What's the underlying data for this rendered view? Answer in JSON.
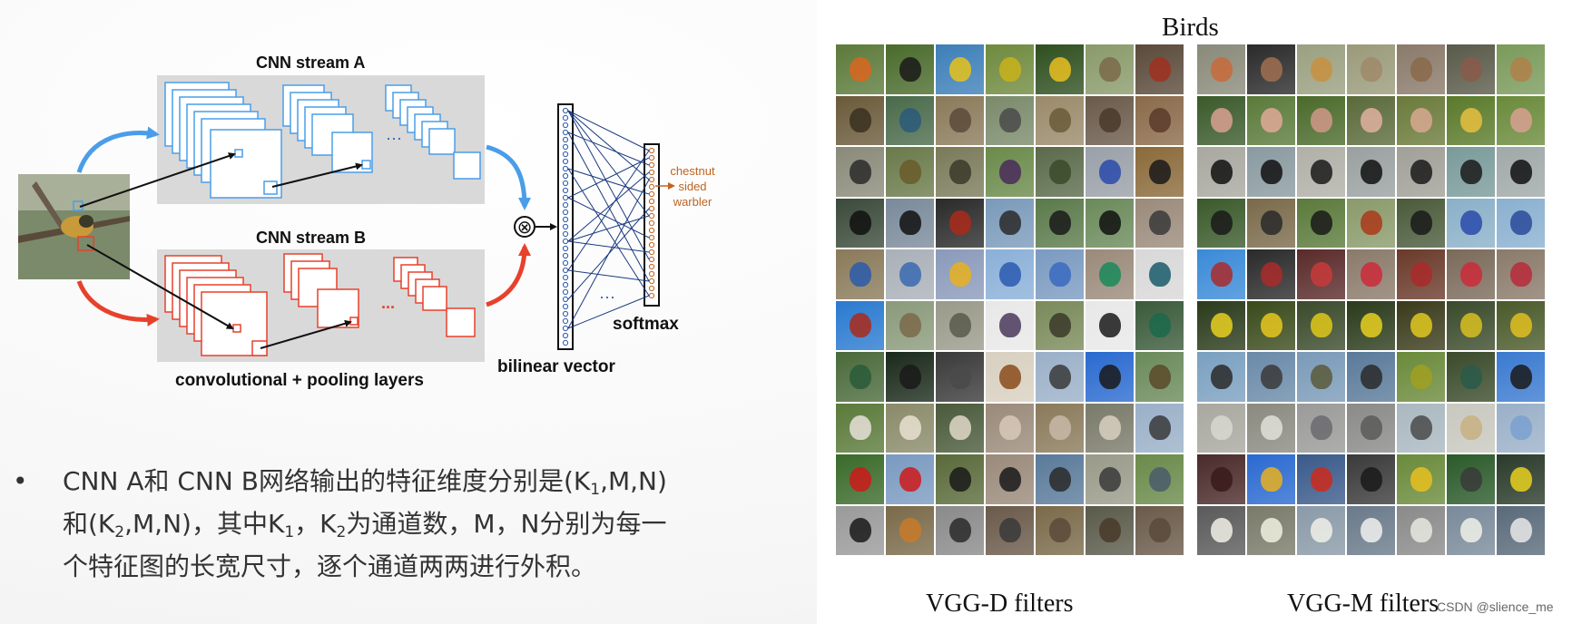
{
  "diagram": {
    "stream_a_label": "CNN stream A",
    "stream_b_label": "CNN stream B",
    "layers_label": "convolutional + pooling layers",
    "bilinear_label": "bilinear vector",
    "softmax_label": "softmax",
    "output_label_1": "chestnut",
    "output_label_2": "sided",
    "output_label_3": "warbler",
    "ellipsis": "...",
    "ellipsis_dots": "···",
    "operator_symbol": "⊗",
    "stream_a_color": "#4a9de8",
    "stream_b_color": "#e8412b",
    "output_color": "#c0641f"
  },
  "bullet": {
    "dot": "•",
    "line1_a": "CNN A和 CNN B网络输出的特征维度分别是(K",
    "line1_sub": "1",
    "line1_b": ",M,N)",
    "line2_a": "和(K",
    "line2_sub1": "2",
    "line2_b": ",M,N)，其中K",
    "line2_sub2": "1",
    "line2_c": "，K",
    "line2_sub3": "2",
    "line2_d": "为通道数，M，N分别为每一",
    "line3": "个特征图的长宽尺寸，逐个通道两两进行外积。"
  },
  "filters": {
    "title": "Birds",
    "left_caption": "VGG-D filters",
    "right_caption": "VGG-M filters",
    "watermark": "CSDN @slience_me",
    "left_rows": [
      {
        "bg": [
          "#5c7a3a",
          "#4a6b2c",
          "#3d7fb8",
          "#6f8a3e",
          "#2f4f1f",
          "#8a9a6a",
          "#5a4a3a"
        ],
        "bird": [
          "#d9661f",
          "#1a1a1a",
          "#e8c21a",
          "#c8b21a",
          "#e8c020",
          "#7a6a4a",
          "#a03020"
        ]
      },
      {
        "bg": [
          "#6a5a3a",
          "#4a6a4a",
          "#8a7a5a",
          "#7a8a6a",
          "#9a8a6a",
          "#6a5a4a",
          "#8a6a4a"
        ],
        "bird": [
          "#3a3020",
          "#2a5a7a",
          "#5a4a3a",
          "#4a4a4a",
          "#6a5a3a",
          "#4a3a2a",
          "#5a3a2a"
        ]
      },
      {
        "bg": [
          "#8a8a7a",
          "#6a7a4a",
          "#7a7a5a",
          "#6a8a4a",
          "#5a6a4a",
          "#9aa0a8",
          "#8a6a3a"
        ],
        "bird": [
          "#2a2a2a",
          "#6a5a2a",
          "#3a3a2a",
          "#4a2a5a",
          "#3a4a2a",
          "#2a4aaa",
          "#1a1a1a"
        ]
      },
      {
        "bg": [
          "#3a4a3a",
          "#7a8a9a",
          "#2a2a2a",
          "#7a9aba",
          "#5a7a4a",
          "#6a8a5a",
          "#9a8a7a"
        ],
        "bird": [
          "#111111",
          "#111111",
          "#aa2a1a",
          "#2a2a2a",
          "#1a1a1a",
          "#111111",
          "#3a3a3a"
        ]
      },
      {
        "bg": [
          "#8a7a5a",
          "#aab0b8",
          "#8a9aba",
          "#8ab0d8",
          "#7a9ac0",
          "#9a8a7a",
          "#d8d8d8"
        ],
        "bird": [
          "#2a5aaa",
          "#3a6ab0",
          "#e8b020",
          "#2a5ab0",
          "#3a6ac0",
          "#1a8a5a",
          "#1a5a6a"
        ]
      },
      {
        "bg": [
          "#2a7ad0",
          "#8a9a7a",
          "#9a9a8a",
          "#e8e8e8",
          "#7a8a5a",
          "#e8e8e8",
          "#3a5a3a"
        ],
        "bird": [
          "#aa2a1a",
          "#7a6a4a",
          "#5a5a4a",
          "#4a3a5a",
          "#3a3a2a",
          "#1a1a1a",
          "#1a6a4a"
        ]
      },
      {
        "bg": [
          "#4a6a3a",
          "#1a2a1a",
          "#3a3a3a",
          "#d8d0c0",
          "#9ab0c8",
          "#2a6ad0",
          "#6a8a5a"
        ],
        "bird": [
          "#2a5a3a",
          "#1a1a1a",
          "#4a4a4a",
          "#8a4a1a",
          "#3a3a3a",
          "#1a1a1a",
          "#5a4a2a"
        ]
      },
      {
        "bg": [
          "#5a7a3a",
          "#8a8a6a",
          "#4a5a3a",
          "#9a8a7a",
          "#8a7a5a",
          "#7a7a6a",
          "#9ab0c8"
        ],
        "bird": [
          "#e8e0d8",
          "#e8e0d0",
          "#e0d8c8",
          "#d8c8b8",
          "#c8b8a8",
          "#d8d0c0",
          "#3a3a3a"
        ]
      },
      {
        "bg": [
          "#3a6a2a",
          "#7a9ac0",
          "#5a6a3a",
          "#9a8a7a",
          "#5a7a9a",
          "#9a9a8a",
          "#6a8a4a"
        ],
        "bird": [
          "#cc1a1a",
          "#cc1a1a",
          "#1a1a1a",
          "#1a1a1a",
          "#2a2a2a",
          "#3a3a3a",
          "#4a5a6a"
        ]
      },
      {
        "bg": [
          "#9a9a9a",
          "#7a6a4a",
          "#8a8a8a",
          "#6a5a4a",
          "#7a6a4a",
          "#5a5a4a",
          "#6a5a4a"
        ],
        "bird": [
          "#1a1a1a",
          "#c87a2a",
          "#2a2a2a",
          "#3a3a3a",
          "#5a4a3a",
          "#4a3a2a",
          "#5a4a3a"
        ]
      }
    ],
    "right_rows": [
      {
        "bg": [
          "#8a8a7a",
          "#2a2a2a",
          "#9aa080",
          "#9a9a7a",
          "#8a7a6a",
          "#5a5a4a",
          "#7a9a5a"
        ],
        "bird": [
          "#c86a3a",
          "#a07050",
          "#c89040",
          "#a08a6a",
          "#8a6a4a",
          "#8a5a4a",
          "#b0804a"
        ]
      },
      {
        "bg": [
          "#3a5a2a",
          "#5a7a3a",
          "#4a6a2a",
          "#5a6a3a",
          "#6a7a3a",
          "#5a7a2a",
          "#6a8a3a"
        ],
        "bird": [
          "#d8a090",
          "#e0a898",
          "#d09888",
          "#e0b0a0",
          "#d8a890",
          "#e8c040",
          "#d8a090"
        ]
      },
      {
        "bg": [
          "#a8a8a0",
          "#8a9aa0",
          "#b0b0a8",
          "#9aa0a0",
          "#a0a098",
          "#7a9a9a",
          "#a0a8a8"
        ],
        "bird": [
          "#111111",
          "#111111",
          "#1a1a1a",
          "#111111",
          "#1a1a1a",
          "#1a1a1a",
          "#111111"
        ]
      },
      {
        "bg": [
          "#3a5a2a",
          "#7a6a4a",
          "#5a7a3a",
          "#8a9a6a",
          "#4a5a3a",
          "#8ab0c8",
          "#8ab0d0"
        ],
        "bird": [
          "#1a1a1a",
          "#2a2a2a",
          "#1a1a1a",
          "#aa3a1a",
          "#1a1a1a",
          "#2a4aaa",
          "#2a4a9a"
        ]
      },
      {
        "bg": [
          "#3a8ad8",
          "#2a2a2a",
          "#5a2a2a",
          "#8a7a6a",
          "#6a3a2a",
          "#7a6a5a",
          "#8a7a6a"
        ],
        "bird": [
          "#aa2a2a",
          "#aa2a2a",
          "#c83a3a",
          "#cc2a3a",
          "#aa2a2a",
          "#cc2a3a",
          "#b82a3a"
        ]
      },
      {
        "bg": [
          "#2a3a1a",
          "#3a4a1a",
          "#3a4a2a",
          "#2a3a1a",
          "#3a3a1a",
          "#3a4a2a",
          "#4a5a2a"
        ],
        "bird": [
          "#e8d020",
          "#e8c820",
          "#e0c81a",
          "#e8d020",
          "#e0c820",
          "#d8c020",
          "#e0c020"
        ]
      },
      {
        "bg": [
          "#7aa0c0",
          "#6a8aa8",
          "#7a9ab8",
          "#5a7a9a",
          "#6a8a3a",
          "#3a4a2a",
          "#3a7ad0"
        ],
        "bird": [
          "#2a2a2a",
          "#3a3a3a",
          "#5a5a3a",
          "#2a2a2a",
          "#a0a020",
          "#2a5a4a",
          "#1a1a1a"
        ]
      },
      {
        "bg": [
          "#a8a8a0",
          "#8a8a80",
          "#9a9a98",
          "#8a8a88",
          "#aab8c0",
          "#c8c8c0",
          "#9ab0c8"
        ],
        "bird": [
          "#d8d8d0",
          "#e0e0d8",
          "#6a6a70",
          "#5a5a5a",
          "#4a4a4a",
          "#c8b080",
          "#7aa0d0"
        ]
      },
      {
        "bg": [
          "#4a2a2a",
          "#2a6ad0",
          "#3a5a8a",
          "#3a3a3a",
          "#6a8a3a",
          "#2a5a2a",
          "#2a3a2a"
        ],
        "bird": [
          "#3a1a1a",
          "#e8b020",
          "#cc2a1a",
          "#1a1a1a",
          "#e8c020",
          "#3a3a3a",
          "#e8d020"
        ]
      },
      {
        "bg": [
          "#5a5a5a",
          "#7a7a6a",
          "#8a9aa8",
          "#6a7a8a",
          "#8a8a8a",
          "#7a8a9a",
          "#5a6a7a"
        ],
        "bird": [
          "#f0f0e8",
          "#f0f0e0",
          "#f0f0e8",
          "#f0f0f0",
          "#e8e8e0",
          "#f0f0e8",
          "#e8e8e8"
        ]
      }
    ]
  }
}
